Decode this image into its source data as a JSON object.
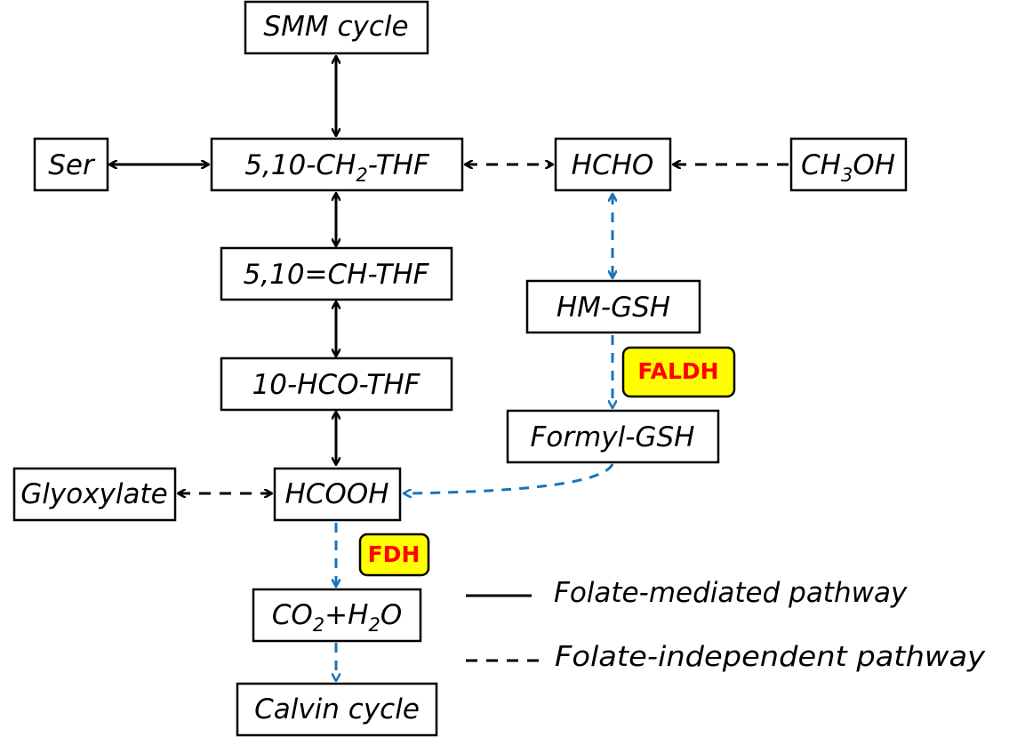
{
  "nodes": {
    "smm": "SMM cycle",
    "ser": "Ser",
    "ch2thf": {
      "pre": "5,10-CH",
      "sub": "2",
      "post": "-THF"
    },
    "hcho": "HCHO",
    "ch3oh": {
      "pre": "CH",
      "sub": "3",
      "post": "OH"
    },
    "chthf": "5,10=CH-THF",
    "hmgsh": "HM-GSH",
    "hcothf": "10-HCO-THF",
    "formylgsh": "Formyl-GSH",
    "glyoxylate": "Glyoxylate",
    "hcooh": "HCOOH",
    "co2h2o": {
      "a": "CO",
      "sub1": "2",
      "b": "+H",
      "sub2": "2",
      "c": "O"
    },
    "calvin": "Calvin cycle"
  },
  "enzymes": {
    "faldh": "FALDH",
    "fdh": "FDH"
  },
  "legend": {
    "solid_label": "Folate-mediated pathway",
    "dashed_label": "Folate-independent pathway"
  },
  "colors": {
    "folate_independent_blue": "#1a73b8",
    "enzyme_fill": "#ffff00",
    "enzyme_text": "#ff0000",
    "line_black": "#000000"
  }
}
